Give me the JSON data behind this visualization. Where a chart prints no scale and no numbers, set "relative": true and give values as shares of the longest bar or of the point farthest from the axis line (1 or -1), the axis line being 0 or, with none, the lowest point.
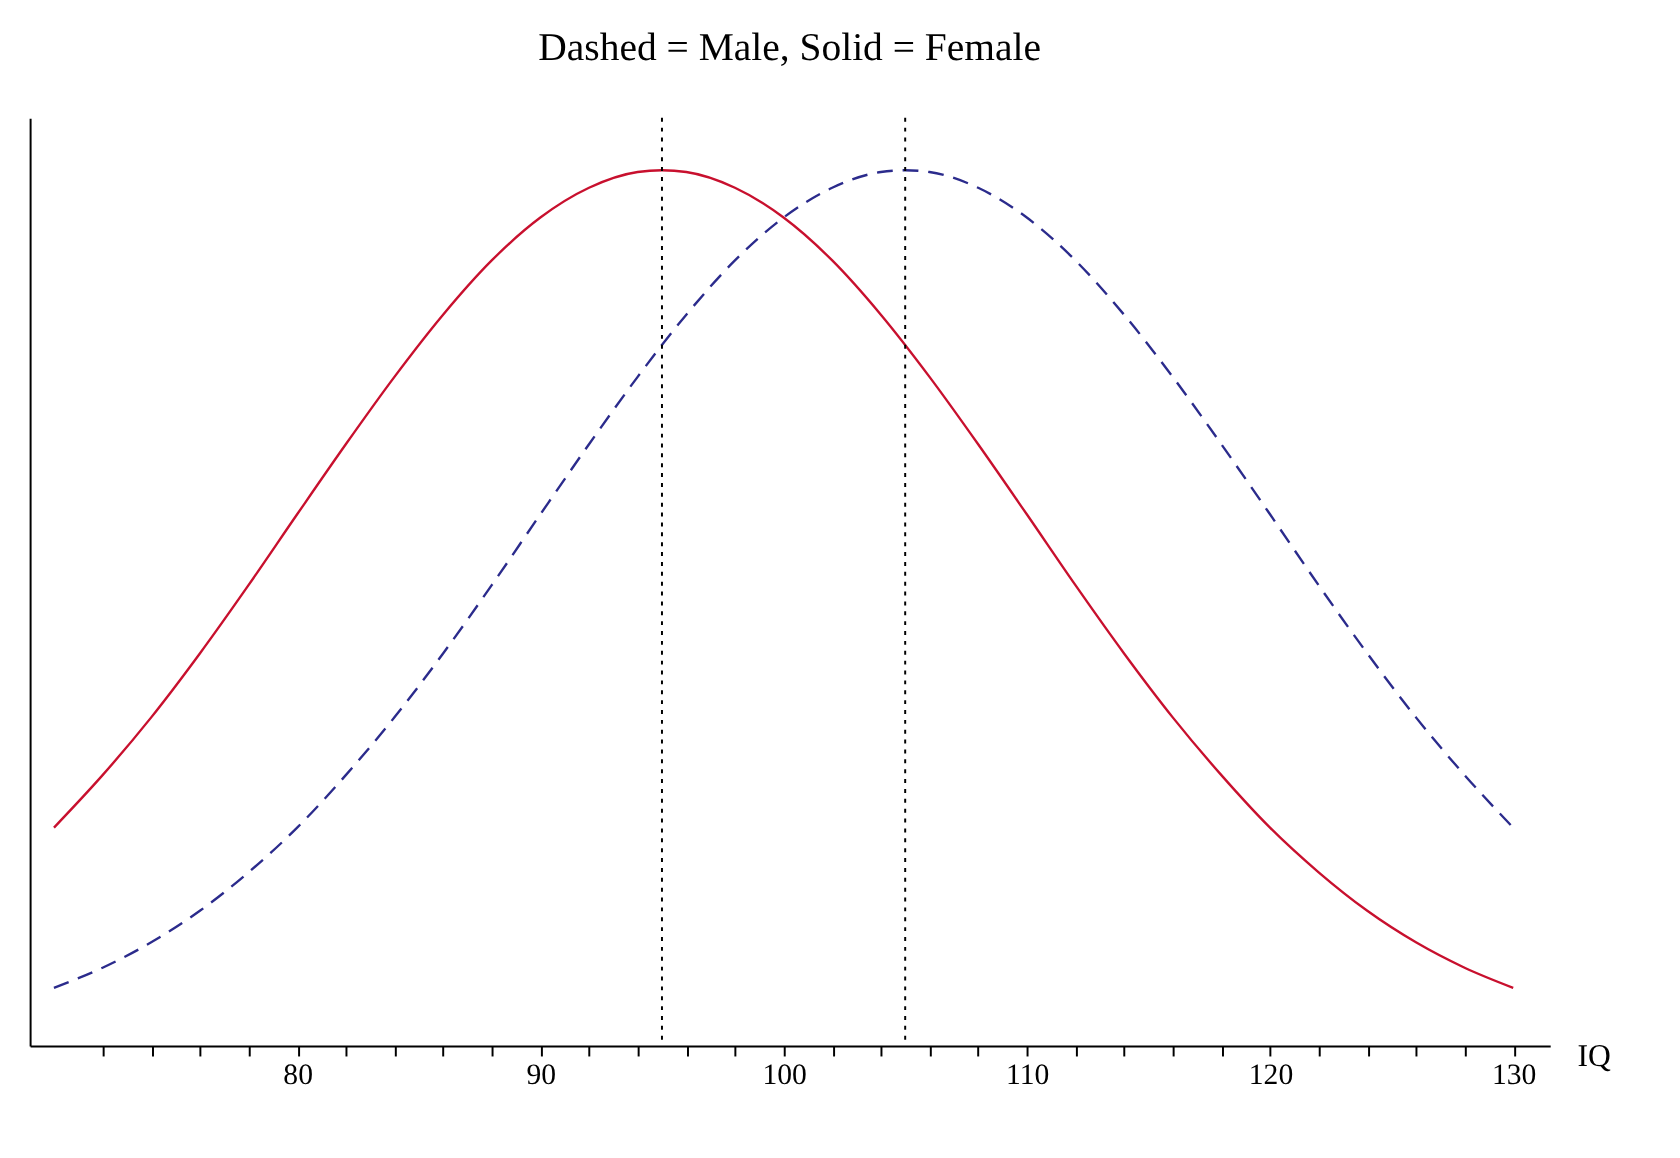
{
  "chart_data": {
    "type": "line",
    "title": "Dashed = Male, Solid = Female",
    "xlabel": "IQ",
    "relative": true,
    "xlim": [
      69,
      131.5
    ],
    "xticks": [
      {
        "value": 72,
        "label": null
      },
      {
        "value": 74,
        "label": null
      },
      {
        "value": 76,
        "label": null
      },
      {
        "value": 78,
        "label": null
      },
      80,
      {
        "value": 82,
        "label": null
      },
      {
        "value": 84,
        "label": null
      },
      {
        "value": 86,
        "label": null
      },
      {
        "value": 88,
        "label": null
      },
      90,
      {
        "value": 92,
        "label": null
      },
      {
        "value": 94,
        "label": null
      },
      {
        "value": 96,
        "label": null
      },
      {
        "value": 98,
        "label": null
      },
      100,
      {
        "value": 102,
        "label": null
      },
      {
        "value": 104,
        "label": null
      },
      {
        "value": 106,
        "label": null
      },
      {
        "value": 108,
        "label": null
      },
      110,
      {
        "value": 112,
        "label": null
      },
      {
        "value": 114,
        "label": null
      },
      {
        "value": 116,
        "label": null
      },
      {
        "value": 118,
        "label": null
      },
      120,
      {
        "value": 122,
        "label": null
      },
      {
        "value": 124,
        "label": null
      },
      {
        "value": 126,
        "label": null
      },
      {
        "value": 128,
        "label": null
      },
      130
    ],
    "grid": false,
    "series": [
      {
        "color": "#c8102e",
        "line_style": "solid",
        "x": [
          70,
          72,
          74,
          76,
          78,
          80,
          82,
          84,
          86,
          88,
          90,
          92,
          94,
          95,
          96,
          98,
          100,
          102,
          104,
          106,
          108,
          110,
          112,
          114,
          116,
          118,
          120,
          122,
          124,
          126,
          128,
          130
        ],
        "values": [
          0.249,
          0.309,
          0.375,
          0.448,
          0.526,
          0.607,
          0.687,
          0.764,
          0.835,
          0.897,
          0.946,
          0.98,
          0.998,
          1,
          0.998,
          0.98,
          0.946,
          0.897,
          0.835,
          0.764,
          0.687,
          0.607,
          0.526,
          0.448,
          0.375,
          0.309,
          0.249,
          0.198,
          0.154,
          0.118,
          0.089,
          0.066
        ]
      },
      {
        "color": "#2b2b8c",
        "line_style": "dashed",
        "x": [
          70,
          72,
          74,
          76,
          78,
          80,
          82,
          84,
          86,
          88,
          90,
          92,
          94,
          96,
          98,
          100,
          102,
          104,
          105,
          106,
          108,
          110,
          112,
          114,
          116,
          118,
          120,
          122,
          124,
          126,
          128,
          130
        ],
        "values": [
          0.066,
          0.089,
          0.118,
          0.154,
          0.198,
          0.249,
          0.309,
          0.375,
          0.448,
          0.526,
          0.607,
          0.687,
          0.764,
          0.835,
          0.897,
          0.946,
          0.98,
          0.998,
          1,
          0.998,
          0.98,
          0.946,
          0.897,
          0.835,
          0.764,
          0.687,
          0.607,
          0.526,
          0.448,
          0.375,
          0.309,
          0.249
        ]
      }
    ],
    "ref_lines": [
      {
        "axis": "x",
        "value": 95,
        "color": "#000000",
        "line_style": "dotted"
      },
      {
        "axis": "x",
        "value": 105,
        "color": "#000000",
        "line_style": "dotted"
      }
    ]
  }
}
